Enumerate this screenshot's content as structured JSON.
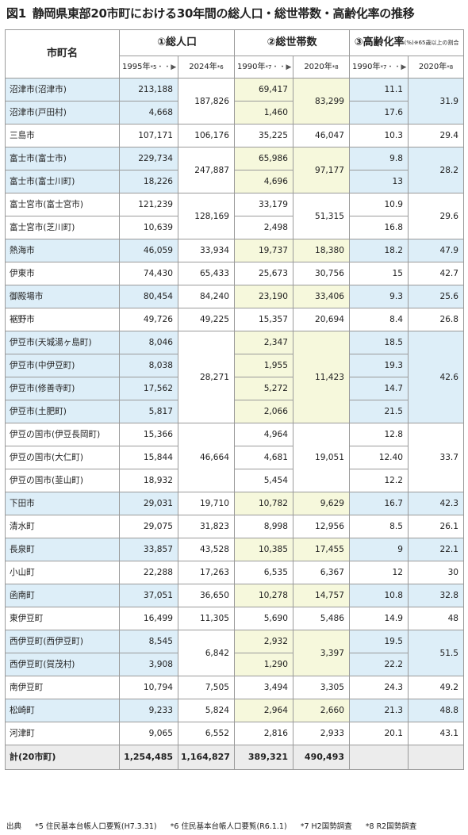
{
  "title": {
    "fig": "図1",
    "text": "静岡県東部20市町における30年間の総人口・総世帯数・高齢化率の推移"
  },
  "header": {
    "name_col": "市町名",
    "g1": "①総人口",
    "g2": "②総世帯数",
    "g3": "③高齢化率",
    "g3_unit": "(%)",
    "g3_note": "※65歳以上の割合",
    "pop_y1": "1995年",
    "pop_y1_fn": "*5",
    "pop_y2": "2024年",
    "pop_y2_fn": "*6",
    "hh_y1": "1990年",
    "hh_y1_fn": "*7",
    "hh_y2": "2020年",
    "hh_y2_fn": "*8",
    "age_y1": "1990年",
    "age_y1_fn": "*7",
    "age_y2": "2020年",
    "age_y2_fn": "*8",
    "arrow": "・・▶"
  },
  "rows": [
    {
      "name": "沼津市(沼津市)",
      "pop95": "213,188",
      "hh90": "69,417",
      "age90": "11.1"
    },
    {
      "name": "沼津市(戸田村)",
      "pop95": "4,668",
      "hh90": "1,460",
      "age90": "17.6"
    },
    {
      "name": "三島市",
      "pop95": "107,171",
      "hh90": "35,225",
      "age90": "10.3"
    },
    {
      "name": "富士市(富士市)",
      "pop95": "229,734",
      "hh90": "65,986",
      "age90": "9.8"
    },
    {
      "name": "富士市(富士川町)",
      "pop95": "18,226",
      "hh90": "4,696",
      "age90": "13"
    },
    {
      "name": "富士宮市(富士宮市)",
      "pop95": "121,239",
      "hh90": "33,179",
      "age90": "10.9"
    },
    {
      "name": "富士宮市(芝川町)",
      "pop95": "10,639",
      "hh90": "2,498",
      "age90": "16.8"
    },
    {
      "name": "熱海市",
      "pop95": "46,059",
      "hh90": "19,737",
      "age90": "18.2"
    },
    {
      "name": "伊東市",
      "pop95": "74,430",
      "hh90": "25,673",
      "age90": "15"
    },
    {
      "name": "御殿場市",
      "pop95": "80,454",
      "hh90": "23,190",
      "age90": "9.3"
    },
    {
      "name": "裾野市",
      "pop95": "49,726",
      "hh90": "15,357",
      "age90": "8.4"
    },
    {
      "name": "伊豆市(天城湯ヶ島町)",
      "pop95": "8,046",
      "hh90": "2,347",
      "age90": "18.5"
    },
    {
      "name": "伊豆市(中伊豆町)",
      "pop95": "8,038",
      "hh90": "1,955",
      "age90": "19.3"
    },
    {
      "name": "伊豆市(修善寺町)",
      "pop95": "17,562",
      "hh90": "5,272",
      "age90": "14.7"
    },
    {
      "name": "伊豆市(土肥町)",
      "pop95": "5,817",
      "hh90": "2,066",
      "age90": "21.5"
    },
    {
      "name": "伊豆の国市(伊豆長岡町)",
      "pop95": "15,366",
      "hh90": "4,964",
      "age90": "12.8"
    },
    {
      "name": "伊豆の国市(大仁町)",
      "pop95": "15,844",
      "hh90": "4,681",
      "age90": "12.40"
    },
    {
      "name": "伊豆の国市(韮山町)",
      "pop95": "18,932",
      "hh90": "5,454",
      "age90": "12.2"
    },
    {
      "name": "下田市",
      "pop95": "29,031",
      "hh90": "10,782",
      "age90": "16.7"
    },
    {
      "name": "清水町",
      "pop95": "29,075",
      "hh90": "8,998",
      "age90": "8.5"
    },
    {
      "name": "長泉町",
      "pop95": "33,857",
      "hh90": "10,385",
      "age90": "9"
    },
    {
      "name": "小山町",
      "pop95": "22,288",
      "hh90": "6,535",
      "age90": "12"
    },
    {
      "name": "函南町",
      "pop95": "37,051",
      "hh90": "10,278",
      "age90": "10.8"
    },
    {
      "name": "東伊豆町",
      "pop95": "16,499",
      "hh90": "5,690",
      "age90": "14.9"
    },
    {
      "name": "西伊豆町(西伊豆町)",
      "pop95": "8,545",
      "hh90": "2,932",
      "age90": "19.5"
    },
    {
      "name": "西伊豆町(賀茂村)",
      "pop95": "3,908",
      "hh90": "1,290",
      "age90": "22.2"
    },
    {
      "name": "南伊豆町",
      "pop95": "10,794",
      "hh90": "3,494",
      "age90": "24.3"
    },
    {
      "name": "松崎町",
      "pop95": "9,233",
      "hh90": "2,964",
      "age90": "21.3"
    },
    {
      "name": "河津町",
      "pop95": "9,065",
      "hh90": "2,816",
      "age90": "20.1"
    }
  ],
  "groups": [
    {
      "rows": 2,
      "pop24": "187,826",
      "hh20": "83,299",
      "age20": "31.9"
    },
    {
      "rows": 1,
      "pop24": "106,176",
      "hh20": "46,047",
      "age20": "29.4"
    },
    {
      "rows": 2,
      "pop24": "247,887",
      "hh20": "97,177",
      "age20": "28.2"
    },
    {
      "rows": 2,
      "pop24": "128,169",
      "hh20": "51,315",
      "age20": "29.6"
    },
    {
      "rows": 1,
      "pop24": "33,934",
      "hh20": "18,380",
      "age20": "47.9"
    },
    {
      "rows": 1,
      "pop24": "65,433",
      "hh20": "30,756",
      "age20": "42.7"
    },
    {
      "rows": 1,
      "pop24": "84,240",
      "hh20": "33,406",
      "age20": "25.6"
    },
    {
      "rows": 1,
      "pop24": "49,225",
      "hh20": "20,694",
      "age20": "26.8"
    },
    {
      "rows": 4,
      "pop24": "28,271",
      "hh20": "11,423",
      "age20": "42.6"
    },
    {
      "rows": 3,
      "pop24": "46,664",
      "hh20": "19,051",
      "age20": "33.7"
    },
    {
      "rows": 1,
      "pop24": "19,710",
      "hh20": "9,629",
      "age20": "42.3"
    },
    {
      "rows": 1,
      "pop24": "31,823",
      "hh20": "12,956",
      "age20": "26.1"
    },
    {
      "rows": 1,
      "pop24": "43,528",
      "hh20": "17,455",
      "age20": "22.1"
    },
    {
      "rows": 1,
      "pop24": "17,263",
      "hh20": "6,367",
      "age20": "30"
    },
    {
      "rows": 1,
      "pop24": "36,650",
      "hh20": "14,757",
      "age20": "32.8"
    },
    {
      "rows": 1,
      "pop24": "11,305",
      "hh20": "5,486",
      "age20": "48"
    },
    {
      "rows": 2,
      "pop24": "6,842",
      "hh20": "3,397",
      "age20": "51.5"
    },
    {
      "rows": 1,
      "pop24": "7,505",
      "hh20": "3,305",
      "age20": "49.2"
    },
    {
      "rows": 1,
      "pop24": "5,824",
      "hh20": "2,660",
      "age20": "48.8"
    },
    {
      "rows": 1,
      "pop24": "6,552",
      "hh20": "2,933",
      "age20": "43.1"
    }
  ],
  "shading": [
    "blue",
    "white",
    "blue",
    "white",
    "blue",
    "white",
    "blue",
    "white",
    "blue",
    "white",
    "blue",
    "white",
    "blue",
    "white",
    "blue",
    "white",
    "blue",
    "white",
    "blue",
    "white"
  ],
  "total": {
    "name": "計(20市町)",
    "pop95": "1,254,485",
    "pop24": "1,164,827",
    "hh90": "389,321",
    "hh20": "490,493"
  },
  "footer": {
    "label": "出典",
    "notes": [
      "*5 住民基本台帳人口要覧(H7.3.31)",
      "*6 住民基本台帳人口要覧(R6.1.1)",
      "*7 H2国勢調査",
      "*8 R2国勢調査"
    ]
  }
}
